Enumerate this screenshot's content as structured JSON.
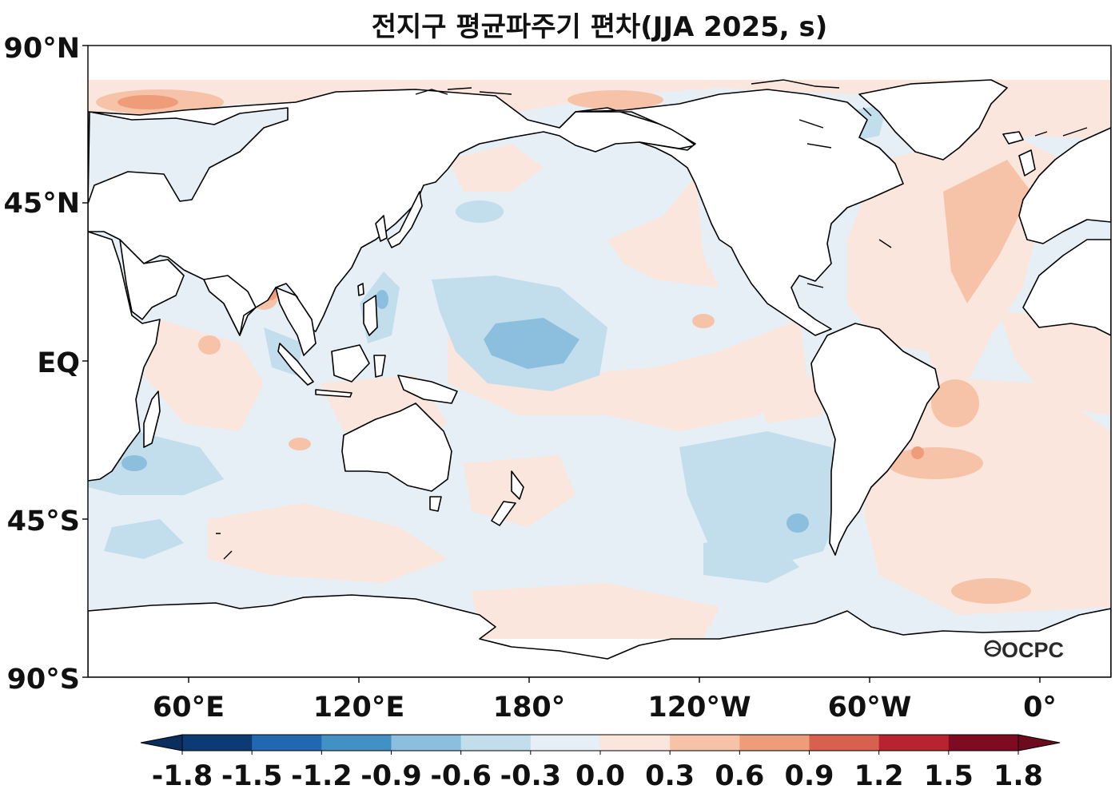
{
  "title": "전지구 평균파주기 편차(JJA 2025, s)",
  "logo_text": "OCPC",
  "axes": {
    "lat_ticks": [
      "90°N",
      "45°N",
      "EQ",
      "45°S",
      "90°S"
    ],
    "lon_ticks": [
      "60°E",
      "120°E",
      "180°",
      "120°W",
      "60°W",
      "0°"
    ]
  },
  "colorbar": {
    "ticks": [
      "-1.8",
      "-1.5",
      "-1.2",
      "-0.9",
      "-0.6",
      "-0.3",
      "0.0",
      "0.3",
      "0.6",
      "0.9",
      "1.2",
      "1.5",
      "1.8"
    ],
    "colors": [
      "#0b3a75",
      "#2268b0",
      "#4391c4",
      "#8cbfdd",
      "#c2ddec",
      "#e6eff5",
      "#fbe6dd",
      "#f6c3a9",
      "#ef9c7b",
      "#d8604e",
      "#b7232e",
      "#7e0b22"
    ],
    "under_color": "#0a2e5e",
    "over_color": "#6d0a1e"
  },
  "colors": {
    "land": "#ffffff",
    "ocean_base": "#e6eff5",
    "coast": "#000000"
  },
  "chart_data": {
    "type": "heatmap",
    "variable": "평균파주기 편차",
    "units": "s",
    "season": "JJA 2025",
    "projection": "PlateCarree, central longitude 180°",
    "levels": [
      -1.8,
      -1.5,
      -1.2,
      -0.9,
      -0.6,
      -0.3,
      0.0,
      0.3,
      0.6,
      0.9,
      1.2,
      1.5,
      1.8
    ],
    "extend": "both",
    "lat_range": [
      -90,
      90
    ],
    "notable_anomalies": [
      {
        "region": "central North Pacific",
        "anomaly_s": -0.6
      },
      {
        "region": "Barents Sea",
        "anomaly_s": 0.6
      },
      {
        "region": "South Atlantic off Brazil",
        "anomaly_s": 0.6
      },
      {
        "region": "South Pacific",
        "anomaly_s": -0.6
      },
      {
        "region": "North Atlantic",
        "anomaly_s": 0.3
      }
    ]
  }
}
